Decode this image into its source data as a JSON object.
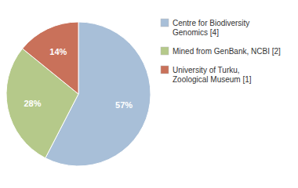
{
  "chart_data": {
    "type": "pie",
    "categories": [
      "Centre for Biodiversity\nGenomics [4]",
      "Mined from GenBank, NCBI [2]",
      "University of Turku,\nZoological Museum [1]"
    ],
    "values": [
      57,
      28,
      14
    ],
    "value_labels": [
      "57%",
      "28%",
      "14%"
    ],
    "colors": [
      "#a8bfd8",
      "#b5c98a",
      "#c9715a"
    ],
    "data_labels": true,
    "legend": "right"
  }
}
